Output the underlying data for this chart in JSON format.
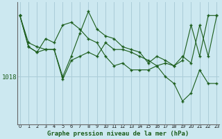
{
  "title": "",
  "xlabel": "Graphe pression niveau de la mer (hPa)",
  "bg_color": "#cce8f0",
  "line_color": "#1a5c1a",
  "grid_color": "#aaccd8",
  "ytick_label": "1018",
  "ytick_value": 1018.0,
  "ymin": 1014.5,
  "ymax": 1023.5,
  "series1_x": [
    0,
    1,
    2,
    3,
    4,
    5,
    6,
    7,
    8,
    9,
    10,
    11,
    12,
    13,
    14,
    15,
    16,
    17,
    18,
    19,
    20,
    21,
    22,
    23
  ],
  "series1_y": [
    1022.5,
    1020.2,
    1019.8,
    1020.8,
    1020.5,
    1021.8,
    1022.0,
    1021.5,
    1020.8,
    1020.5,
    1019.5,
    1018.8,
    1019.0,
    1018.5,
    1018.5,
    1018.5,
    1018.8,
    1019.0,
    1018.8,
    1019.2,
    1021.8,
    1019.5,
    1022.5,
    1022.5
  ],
  "series2_x": [
    0,
    1,
    2,
    3,
    4,
    5,
    6,
    7,
    8,
    9,
    10,
    11,
    12,
    13,
    14,
    15,
    16,
    17,
    18,
    19,
    20,
    21,
    22,
    23
  ],
  "series2_y": [
    1022.5,
    1020.5,
    1020.2,
    1020.0,
    1020.0,
    1018.0,
    1019.5,
    1021.2,
    1022.8,
    1021.5,
    1021.0,
    1020.8,
    1020.2,
    1020.0,
    1019.8,
    1019.0,
    1019.5,
    1019.2,
    1018.8,
    1019.5,
    1019.0,
    1021.8,
    1019.5,
    1022.5
  ],
  "series3_x": [
    0,
    1,
    2,
    3,
    4,
    5,
    6,
    7,
    8,
    9,
    10,
    11,
    12,
    13,
    14,
    15,
    16,
    17,
    18,
    19,
    20,
    21,
    22,
    23
  ],
  "series3_y": [
    1022.5,
    1020.2,
    1019.8,
    1020.0,
    1020.0,
    1017.8,
    1019.2,
    1019.5,
    1019.8,
    1019.5,
    1020.5,
    1020.0,
    1020.0,
    1019.8,
    1019.5,
    1019.2,
    1018.8,
    1018.0,
    1017.5,
    1016.2,
    1016.8,
    1018.5,
    1017.5,
    1017.5
  ]
}
